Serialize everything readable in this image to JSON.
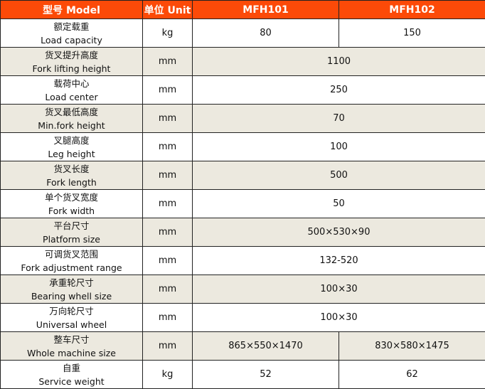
{
  "header": {
    "model": "型号 Model",
    "unit": "单位 Unit",
    "mfh101": "MFH101",
    "mfh102": "MFH102"
  },
  "rows": [
    {
      "cn": "额定载重",
      "en": "Load capacity",
      "unit": "kg",
      "v1": "80",
      "v2": "150"
    },
    {
      "cn": "货叉提升高度",
      "en": "Fork lifting height",
      "unit": "mm",
      "v": "1100"
    },
    {
      "cn": "载荷中心",
      "en": "Load center",
      "unit": "mm",
      "v": "250"
    },
    {
      "cn": "货叉最低高度",
      "en": "Min.fork  height",
      "unit": "mm",
      "v": "70"
    },
    {
      "cn": "叉腿高度",
      "en": "Leg height",
      "unit": "mm",
      "v": "100"
    },
    {
      "cn": "货叉长度",
      "en": "Fork length",
      "unit": "mm",
      "v": "500"
    },
    {
      "cn": "单个货叉宽度",
      "en": "Fork width",
      "unit": "mm",
      "v": "50"
    },
    {
      "cn": "平台尺寸",
      "en": "Platform size",
      "unit": "mm",
      "v": "500×530×90"
    },
    {
      "cn": "可调货叉范围",
      "en": "Fork adjustment range",
      "unit": "mm",
      "v": "132-520"
    },
    {
      "cn": "承重轮尺寸",
      "en": "Bearing whell size",
      "unit": "mm",
      "v": "100×30"
    },
    {
      "cn": "万向轮尺寸",
      "en": "Universal wheel",
      "unit": "mm",
      "v": "100×30"
    },
    {
      "cn": "整车尺寸",
      "en": "Whole machine size",
      "unit": "mm",
      "v1": "865×550×1470",
      "v2": "830×580×1475"
    },
    {
      "cn": "自重",
      "en": "Service weight",
      "unit": "kg",
      "v1": "52",
      "v2": "62"
    }
  ]
}
